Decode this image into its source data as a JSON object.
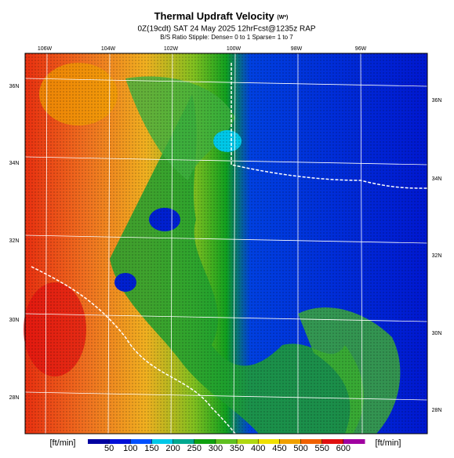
{
  "header": {
    "title": "Thermal Updraft Velocity",
    "title_unit": "(W*)",
    "subtitle": "0Z(19cdt) SAT 24 May 2025 12hrFcst@1235z RAP",
    "stipple_note": "B/S Ratio Stipple: Dense= 0 to 1 Sparse= 1 to 7"
  },
  "map": {
    "lon_labels": [
      "106W",
      "104W",
      "102W",
      "100W",
      "98W",
      "96W"
    ],
    "lat_labels_left": [
      "36N",
      "34N",
      "32N",
      "30N",
      "28N"
    ],
    "lat_labels_right": [
      "36N",
      "34N",
      "32N",
      "30N",
      "28N"
    ]
  },
  "colorbar": {
    "unit_left": "[ft/min]",
    "unit_right": "[ft/min]",
    "lim": [
      0,
      650
    ],
    "ticks": [
      50,
      100,
      150,
      200,
      250,
      300,
      350,
      400,
      450,
      500,
      550,
      600
    ],
    "colors": [
      "#0000a0",
      "#0010d8",
      "#0050ff",
      "#00c8e8",
      "#00a890",
      "#10a010",
      "#60c020",
      "#b0d810",
      "#f0e000",
      "#f0a000",
      "#f06000",
      "#e01010",
      "#a000a0"
    ]
  }
}
